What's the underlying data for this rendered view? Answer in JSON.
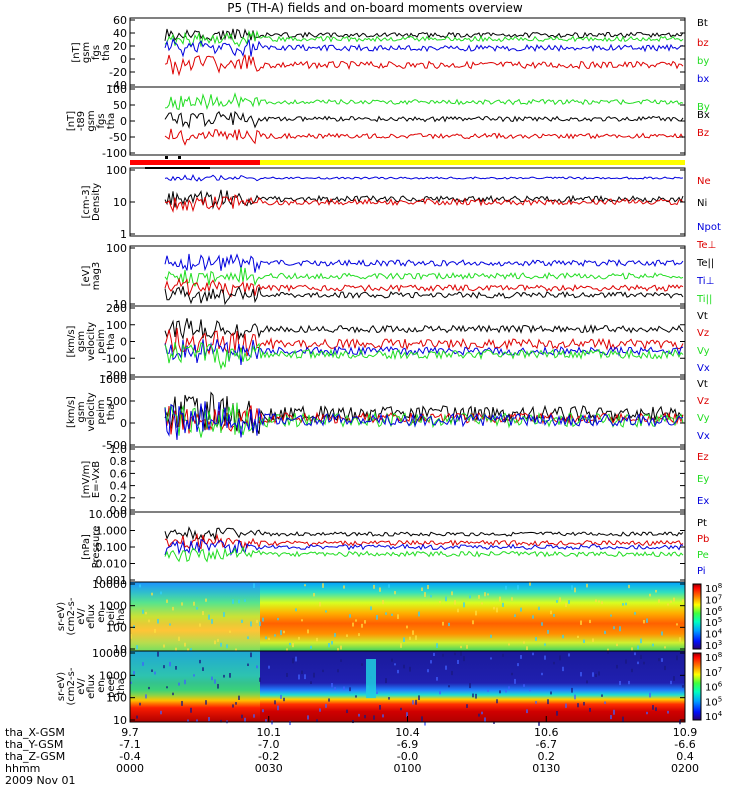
{
  "title": "P5 (TH-A) fields and on-board moments overview",
  "colors": {
    "black": "#000000",
    "red": "#dd0000",
    "green": "#22dd22",
    "blue": "#0000dd",
    "yellow": "#ffff00",
    "status_red": "#ff0000"
  },
  "panels": [
    {
      "id": "fgs",
      "ylabel": [
        "tha",
        "fgs",
        "gsm",
        "[nT]"
      ],
      "ticks": [
        "60",
        "40",
        "20",
        "0",
        "-20",
        "-40"
      ],
      "legend": [
        {
          "t": "Bt",
          "c": "black"
        },
        {
          "t": "bz",
          "c": "red"
        },
        {
          "t": "by",
          "c": "green"
        },
        {
          "t": "bx",
          "c": "blue"
        }
      ]
    },
    {
      "id": "fgs_t89",
      "ylabel": [
        "tha",
        "fgs",
        "gsm",
        "-t89",
        "[nT]"
      ],
      "ticks": [
        "100",
        "50",
        "0",
        "-50",
        "-100"
      ],
      "legend": [
        {
          "t": "By",
          "c": "green"
        },
        {
          "t": "Bx",
          "c": "black"
        },
        {
          "t": "Bz",
          "c": "red"
        }
      ]
    },
    {
      "id": "density",
      "ylabel": [
        "Density",
        "[cm-3]"
      ],
      "ticks": [
        "100",
        "10",
        "1"
      ],
      "legend": [
        {
          "t": "Ne",
          "c": "red"
        },
        {
          "t": "Ni",
          "c": "black"
        },
        {
          "t": "Npot",
          "c": "blue"
        }
      ]
    },
    {
      "id": "temp",
      "ylabel": [
        "mag3",
        "[eV]"
      ],
      "ticks": [
        "100",
        "10"
      ],
      "legend": [
        {
          "t": "Te⊥",
          "c": "red"
        },
        {
          "t": "Te||",
          "c": "black"
        },
        {
          "t": "Ti⊥",
          "c": "blue"
        },
        {
          "t": "Ti||",
          "c": "green"
        }
      ]
    },
    {
      "id": "velocity1",
      "ylabel": [
        "tha",
        "peim",
        "velocity",
        "gsm",
        "[km/s]"
      ],
      "ticks": [
        "200",
        "100",
        "0",
        "-100",
        "-200"
      ],
      "legend": [
        {
          "t": "Vt",
          "c": "black"
        },
        {
          "t": "Vz",
          "c": "red"
        },
        {
          "t": "Vy",
          "c": "green"
        },
        {
          "t": "Vx",
          "c": "blue"
        }
      ]
    },
    {
      "id": "velocity2",
      "ylabel": [
        "tha",
        "peim",
        "velocity",
        "gsm",
        "[km/s]"
      ],
      "ticks": [
        "1000",
        "500",
        "0",
        "-500"
      ],
      "legend": [
        {
          "t": "Vt",
          "c": "black"
        },
        {
          "t": "Vz",
          "c": "red"
        },
        {
          "t": "Vy",
          "c": "green"
        },
        {
          "t": "Vx",
          "c": "blue"
        }
      ]
    },
    {
      "id": "efield",
      "ylabel": [
        "E=-VxB",
        "[mV/m]"
      ],
      "ticks": [
        "1.0",
        "0.8",
        "0.6",
        "0.4",
        "0.2",
        "0.0"
      ],
      "legend": [
        {
          "t": "Ez",
          "c": "red"
        },
        {
          "t": "Ey",
          "c": "green"
        },
        {
          "t": "Ex",
          "c": "blue"
        }
      ]
    },
    {
      "id": "pressure",
      "ylabel": [
        "Pressure",
        "[nPa]"
      ],
      "ticks": [
        "10.000",
        "1.000",
        "0.100",
        "0.010",
        "0.001"
      ],
      "legend": [
        {
          "t": "Pt",
          "c": "black"
        },
        {
          "t": "Pb",
          "c": "red"
        },
        {
          "t": "Pe",
          "c": "green"
        },
        {
          "t": "Pi",
          "c": "blue"
        }
      ]
    },
    {
      "id": "ion_spec",
      "ylabel": [
        "tha",
        "peir",
        "en",
        "eflux",
        "eV/",
        "(cm2-s-",
        "sr-eV)"
      ],
      "ticks": [
        "10000",
        "1000",
        "100",
        "10"
      ],
      "cbar_ticks": [
        "10^8",
        "10^7",
        "10^6",
        "10^5",
        "10^4",
        "10^3"
      ]
    },
    {
      "id": "elec_spec",
      "ylabel": [
        "tha",
        "peer",
        "en",
        "eflux",
        "eV/",
        "(cm2-s-",
        "sr-eV)"
      ],
      "ticks": [
        "10000",
        "1000",
        "100",
        "10"
      ],
      "cbar_ticks": [
        "10^8",
        "10^7",
        "10^6",
        "10^5",
        "10^4"
      ]
    }
  ],
  "footer": {
    "row_labels": [
      "tha_X-GSM",
      "tha_Y-GSM",
      "tha_Z-GSM",
      "hhmm",
      "2009 Nov 01"
    ],
    "columns": [
      {
        "x": "9.7",
        "y": "-7.1",
        "z": "-0.4",
        "t": "0000"
      },
      {
        "x": "10.1",
        "y": "-7.0",
        "z": "-0.2",
        "t": "0030"
      },
      {
        "x": "10.4",
        "y": "-6.9",
        "z": "-0.0",
        "t": "0100"
      },
      {
        "x": "10.6",
        "y": "-6.7",
        "z": "0.2",
        "t": "0130"
      },
      {
        "x": "10.9",
        "y": "-6.6",
        "z": "0.4",
        "t": "0200"
      }
    ]
  },
  "chart_data": {
    "type": "line",
    "title": "P5 (TH-A) fields and on-board moments overview",
    "date": "2009 Nov 01",
    "time_ticks": [
      "0000",
      "0030",
      "0100",
      "0130",
      "0200"
    ],
    "series_approx": {
      "fgs_Bt": 35,
      "fgs_bz": -5,
      "fgs_by": 30,
      "fgs_bx": 12,
      "t89_By": 50,
      "t89_Bx": 0,
      "t89_Bz": -55,
      "density_Ne": 20,
      "density_Ni": 20,
      "density_Npot": 60,
      "temp_Tepar": 25,
      "temp_Teperp": 30,
      "temp_Tiperp": 250,
      "temp_Tipar": 150,
      "pressure_Pt": 0.8,
      "pressure_Pb": 0.3,
      "pressure_Pe": 0.1,
      "pressure_Pi": 0.3
    }
  }
}
